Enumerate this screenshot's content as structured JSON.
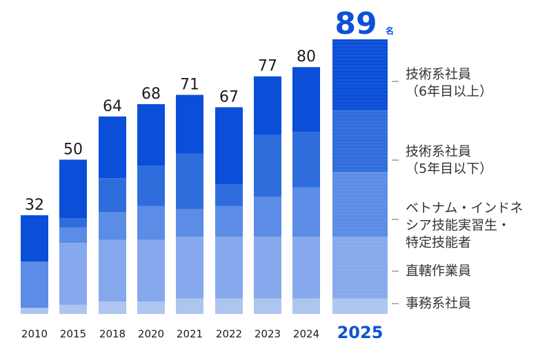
{
  "chart_data": {
    "type": "bar",
    "stacked": true,
    "categories": [
      "2010",
      "2015",
      "2018",
      "2020",
      "2021",
      "2022",
      "2023",
      "2024",
      "2025"
    ],
    "highlight_category": "2025",
    "highlight_unit": "名",
    "totals": [
      32,
      50,
      64,
      68,
      71,
      67,
      77,
      80,
      89
    ],
    "series": [
      {
        "name": "事務系社員",
        "values": [
          2,
          3,
          4,
          4,
          5,
          5,
          5,
          5,
          5
        ]
      },
      {
        "name": "直轄作業員",
        "values": [
          0,
          20,
          20,
          20,
          20,
          20,
          20,
          20,
          20
        ]
      },
      {
        "name": "ベトナム・インドネシア技能実習生・特定技能者",
        "values": [
          15,
          5,
          9,
          11,
          9,
          10,
          13,
          16,
          21
        ]
      },
      {
        "name": "技術系社員（5年目以下）",
        "values": [
          0,
          3,
          11,
          13,
          18,
          7,
          20,
          18,
          20
        ]
      },
      {
        "name": "技術系社員（6年目以上）",
        "values": [
          15,
          19,
          20,
          20,
          19,
          25,
          19,
          21,
          23
        ]
      }
    ],
    "colors": [
      "#aec5f0",
      "#85a9ec",
      "#5b8ce6",
      "#2f6ddd",
      "#0b4fd8"
    ],
    "highlight_color": "#0d52d6",
    "legend": [
      {
        "lines": [
          "技術系社員",
          "（6年目以上）"
        ]
      },
      {
        "lines": [
          "技術系社員",
          "（5年目以下）"
        ]
      },
      {
        "lines": [
          "ベトナム・インドネ",
          "シア技能実習生・",
          "特定技能者"
        ]
      },
      {
        "lines": [
          "直轄作業員"
        ]
      },
      {
        "lines": [
          "事務系社員"
        ]
      }
    ],
    "legend_position": "right",
    "grid": false,
    "ylim": [
      0,
      89
    ]
  }
}
